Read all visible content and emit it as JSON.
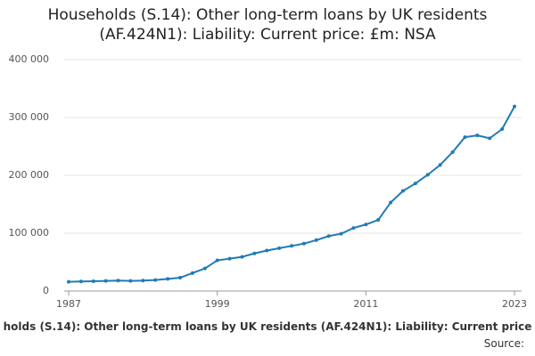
{
  "chart_data": {
    "type": "line",
    "title": "Households (S.14): Other long-term loans by UK residents (AF.424N1): Liability: Current price: £m: NSA",
    "caption": "holds (S.14): Other long-term loans by UK residents (AF.424N1): Liability: Current price",
    "source": "Source:",
    "x": [
      1987,
      1988,
      1989,
      1990,
      1991,
      1992,
      1993,
      1994,
      1995,
      1996,
      1997,
      1998,
      1999,
      2000,
      2001,
      2002,
      2003,
      2004,
      2005,
      2006,
      2007,
      2008,
      2009,
      2010,
      2011,
      2012,
      2013,
      2014,
      2015,
      2016,
      2017,
      2018,
      2019,
      2020,
      2021,
      2022,
      2023
    ],
    "values": [
      16000,
      16500,
      17000,
      17500,
      18000,
      17500,
      18000,
      19000,
      21000,
      23000,
      31000,
      39000,
      53000,
      56000,
      59000,
      65000,
      70000,
      74000,
      78000,
      82000,
      88000,
      95000,
      99000,
      109000,
      115000,
      123000,
      153000,
      173000,
      186000,
      201000,
      218000,
      240000,
      266000,
      269000,
      264000,
      280000,
      319000
    ],
    "color": "#1f7bb6",
    "xlim": [
      1987,
      2023
    ],
    "xticks": [
      1987,
      1999,
      2011,
      2023
    ],
    "ylim": [
      0,
      400000
    ],
    "yticks": [
      0,
      {
        "value": 100000,
        "label": "100 000"
      },
      {
        "value": 200000,
        "label": "200 000"
      },
      {
        "value": 300000,
        "label": "300 000"
      },
      {
        "value": 400000,
        "label": "400 000"
      }
    ],
    "grid": true
  }
}
